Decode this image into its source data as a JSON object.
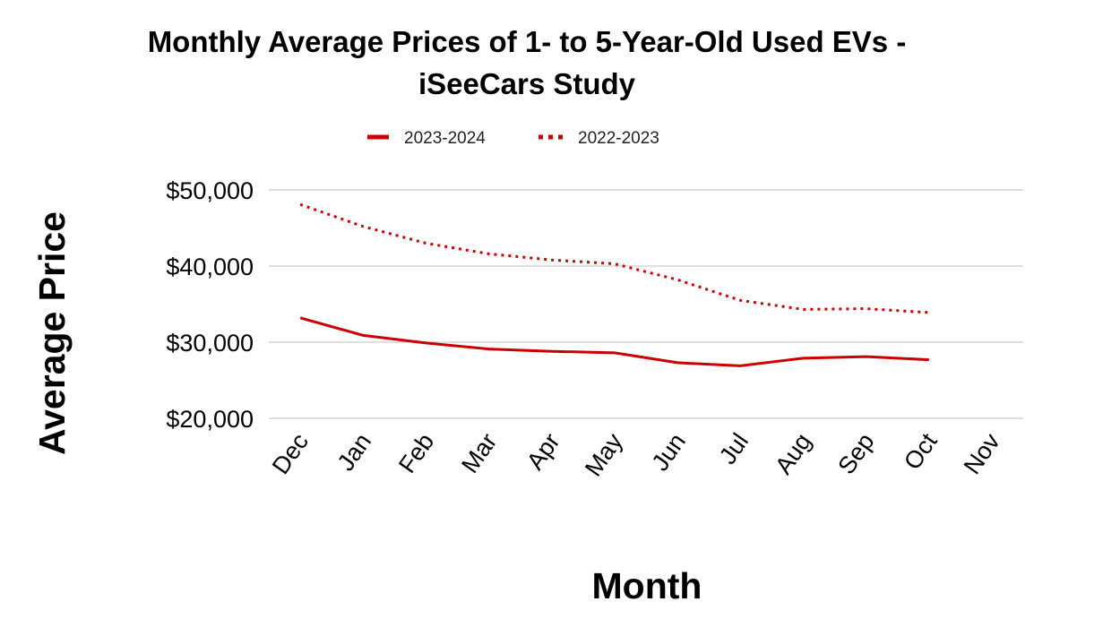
{
  "chart_data": {
    "type": "line",
    "title_lines": [
      "Monthly Average Prices of 1- to 5-Year-Old Used EVs -",
      "iSeeCars Study"
    ],
    "xlabel": "Month",
    "ylabel": "Average Price",
    "categories": [
      "Dec",
      "Jan",
      "Feb",
      "Mar",
      "Apr",
      "May",
      "Jun",
      "Jul",
      "Aug",
      "Sep",
      "Oct",
      "Nov"
    ],
    "ylim": [
      20000,
      50000
    ],
    "yticks": [
      20000,
      30000,
      40000,
      50000
    ],
    "ytick_labels": [
      "$20,000",
      "$30,000",
      "$40,000",
      "$50,000"
    ],
    "grid": true,
    "legend_position": "top-center",
    "series": [
      {
        "name": "2023-2024",
        "style": "solid",
        "color": "#cc0000",
        "values": [
          33200,
          30900,
          29900,
          29100,
          28800,
          28600,
          27300,
          26900,
          27900,
          28100,
          27700,
          null
        ]
      },
      {
        "name": "2022-2023",
        "style": "dotted",
        "color": "#cc0000",
        "values": [
          48100,
          45200,
          43000,
          41600,
          40800,
          40300,
          38200,
          35500,
          34300,
          34400,
          33900,
          null
        ]
      }
    ]
  }
}
